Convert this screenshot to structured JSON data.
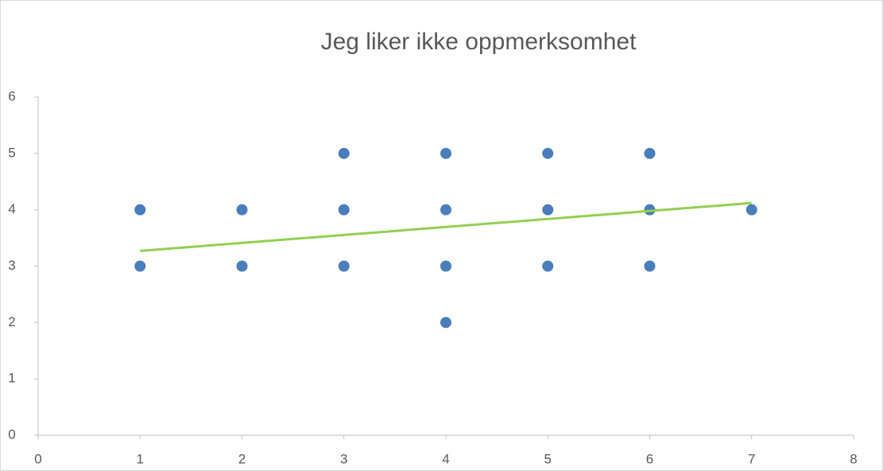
{
  "chart_data": {
    "type": "scatter",
    "title": "Jeg liker ikke oppmerksomhet",
    "x": [
      1,
      1,
      2,
      2,
      3,
      3,
      3,
      4,
      4,
      4,
      4,
      5,
      5,
      5,
      6,
      6,
      6,
      7
    ],
    "values": [
      4,
      3,
      4,
      3,
      5,
      4,
      3,
      5,
      4,
      3,
      2,
      5,
      4,
      3,
      5,
      4,
      3,
      4
    ],
    "color": "#4a7ebb",
    "trendline": {
      "color": "#92d050",
      "x": [
        1,
        7
      ],
      "values": [
        3.27,
        4.12
      ]
    },
    "xlim": [
      0,
      8
    ],
    "xticks": [
      0,
      1,
      2,
      3,
      4,
      5,
      6,
      7,
      8
    ],
    "ylim": [
      0,
      6
    ],
    "yticks": [
      0,
      1,
      2,
      3,
      4,
      5,
      6
    ],
    "grid": false
  }
}
